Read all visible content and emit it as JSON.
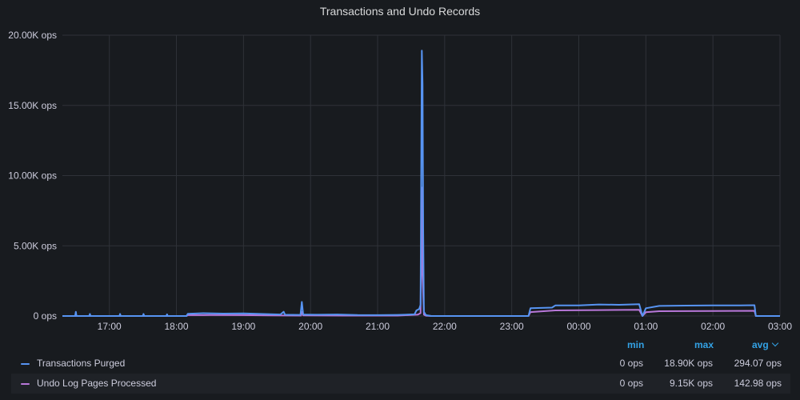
{
  "panel": {
    "title": "Transactions and Undo Records"
  },
  "legend": {
    "columns": {
      "min": "min",
      "max": "max",
      "avg": "avg"
    },
    "sort_icon": "chevron-down-icon",
    "rows": [
      {
        "name": "Transactions Purged",
        "color": "#5794f2",
        "min": "0 ops",
        "max": "18.90K ops",
        "avg": "294.07 ops"
      },
      {
        "name": "Undo Log Pages Processed",
        "color": "#b877d9",
        "min": "0 ops",
        "max": "9.15K ops",
        "avg": "142.98 ops"
      }
    ]
  },
  "chart_data": {
    "type": "line",
    "title": "Transactions and Undo Records",
    "xlabel": "",
    "ylabel": "",
    "x_ticks": [
      "17:00",
      "18:00",
      "19:00",
      "20:00",
      "21:00",
      "22:00",
      "23:00",
      "00:00",
      "01:00",
      "02:00",
      "03:00"
    ],
    "y_ticks": [
      "0 ops",
      "5.00K ops",
      "10.00K ops",
      "15.00K ops",
      "20.00K ops"
    ],
    "ylim": [
      0,
      20000
    ],
    "xlim_hours": [
      16.3,
      27.0
    ],
    "grid": true,
    "legend_position": "bottom",
    "series": [
      {
        "name": "Transactions Purged",
        "color": "#5794f2",
        "points": [
          [
            16.3,
            0
          ],
          [
            16.49,
            0
          ],
          [
            16.5,
            300
          ],
          [
            16.51,
            0
          ],
          [
            16.7,
            0
          ],
          [
            16.71,
            150
          ],
          [
            16.72,
            0
          ],
          [
            17.15,
            0
          ],
          [
            17.16,
            150
          ],
          [
            17.17,
            0
          ],
          [
            17.5,
            0
          ],
          [
            17.51,
            150
          ],
          [
            17.52,
            0
          ],
          [
            17.85,
            0
          ],
          [
            17.86,
            120
          ],
          [
            17.87,
            0
          ],
          [
            18.15,
            0
          ],
          [
            18.17,
            160
          ],
          [
            18.4,
            200
          ],
          [
            18.7,
            170
          ],
          [
            19.0,
            180
          ],
          [
            19.3,
            140
          ],
          [
            19.55,
            110
          ],
          [
            19.6,
            300
          ],
          [
            19.62,
            90
          ],
          [
            19.85,
            80
          ],
          [
            19.87,
            1000
          ],
          [
            19.89,
            100
          ],
          [
            20.1,
            90
          ],
          [
            20.4,
            110
          ],
          [
            20.7,
            70
          ],
          [
            21.0,
            60
          ],
          [
            21.3,
            80
          ],
          [
            21.55,
            120
          ],
          [
            21.58,
            400
          ],
          [
            21.62,
            500
          ],
          [
            21.64,
            800
          ],
          [
            21.66,
            18900
          ],
          [
            21.67,
            16500
          ],
          [
            21.68,
            6200
          ],
          [
            21.69,
            300
          ],
          [
            21.72,
            60
          ],
          [
            21.8,
            0
          ],
          [
            23.25,
            0
          ],
          [
            23.28,
            550
          ],
          [
            23.6,
            600
          ],
          [
            23.65,
            750
          ],
          [
            24.0,
            750
          ],
          [
            24.3,
            820
          ],
          [
            24.6,
            800
          ],
          [
            24.9,
            840
          ],
          [
            24.95,
            0
          ],
          [
            25.0,
            550
          ],
          [
            25.2,
            720
          ],
          [
            25.6,
            740
          ],
          [
            26.0,
            760
          ],
          [
            26.4,
            750
          ],
          [
            26.62,
            770
          ],
          [
            26.64,
            0
          ],
          [
            27.0,
            0
          ]
        ]
      },
      {
        "name": "Undo Log Pages Processed",
        "color": "#b877d9",
        "points": [
          [
            16.3,
            0
          ],
          [
            18.15,
            0
          ],
          [
            18.17,
            60
          ],
          [
            18.5,
            70
          ],
          [
            19.0,
            60
          ],
          [
            19.4,
            40
          ],
          [
            19.86,
            30
          ],
          [
            19.87,
            300
          ],
          [
            19.89,
            40
          ],
          [
            20.5,
            30
          ],
          [
            21.3,
            30
          ],
          [
            21.6,
            100
          ],
          [
            21.64,
            200
          ],
          [
            21.66,
            9150
          ],
          [
            21.67,
            2900
          ],
          [
            21.69,
            100
          ],
          [
            21.72,
            20
          ],
          [
            21.8,
            0
          ],
          [
            23.25,
            0
          ],
          [
            23.28,
            280
          ],
          [
            23.65,
            400
          ],
          [
            24.3,
            420
          ],
          [
            24.9,
            440
          ],
          [
            24.95,
            0
          ],
          [
            25.0,
            270
          ],
          [
            25.2,
            340
          ],
          [
            26.0,
            360
          ],
          [
            26.62,
            370
          ],
          [
            26.64,
            0
          ],
          [
            27.0,
            0
          ]
        ]
      }
    ]
  }
}
